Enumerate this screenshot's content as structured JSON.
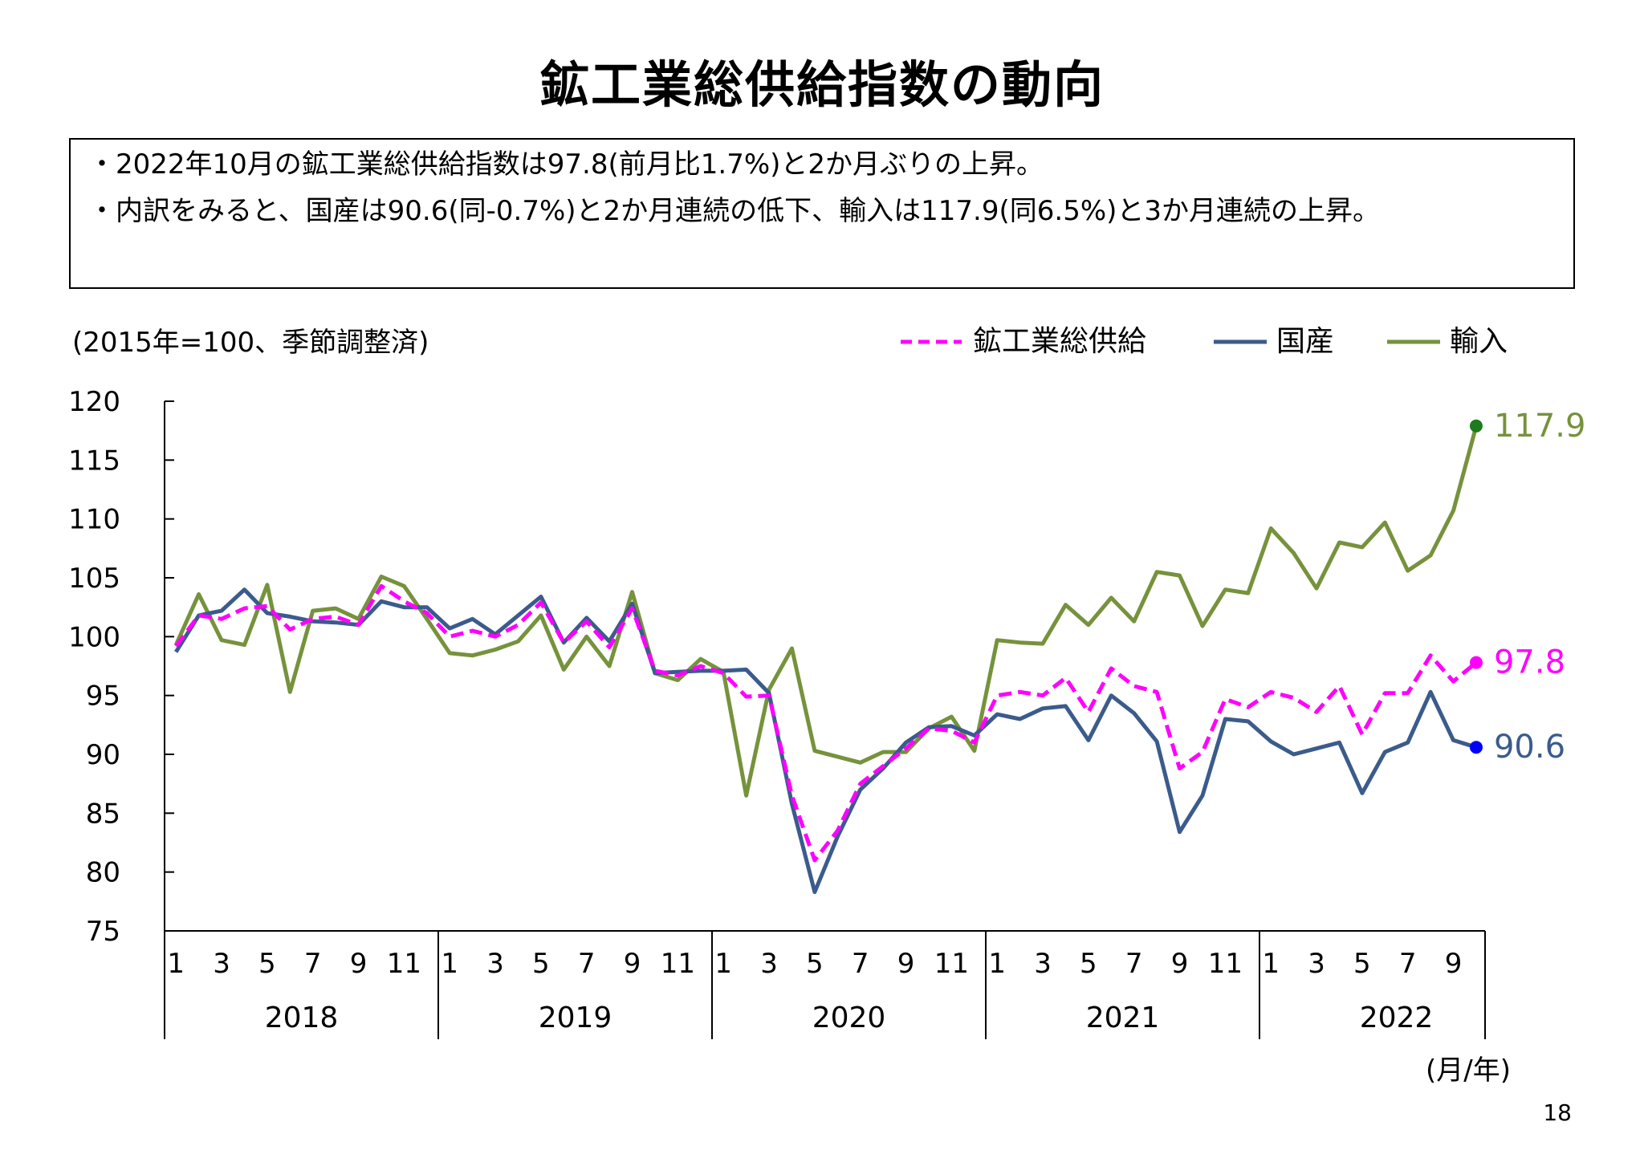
{
  "title": "鉱工業総供給指数の動向",
  "summary": {
    "bullet1": "・2022年10月の鉱工業総供給指数は97.8(前月比1.7%)と2か月ぶりの上昇。",
    "bullet2": "・内訳をみると、国産は90.6(同-0.7%)と2か月連続の低下、輸入は117.9(同6.5%)と3か月連続の上昇。"
  },
  "unit_note": "(2015年=100、季節調整済)",
  "axis_unit": "(月/年)",
  "page_number": "18",
  "colors": {
    "total": "#ff00ff",
    "domestic": "#3b5b8c",
    "import": "#76923c"
  },
  "chart_data": {
    "type": "line",
    "ylim": [
      75,
      120
    ],
    "yticks": [
      "75",
      "80",
      "85",
      "90",
      "95",
      "100",
      "105",
      "110",
      "115",
      "120"
    ],
    "month_labels": [
      "1",
      "3",
      "5",
      "7",
      "9",
      "11"
    ],
    "years": [
      "2018",
      "2019",
      "2020",
      "2021",
      "2022"
    ],
    "legend_position": "top-right",
    "grid": false,
    "series": [
      {
        "key": "total",
        "name": "鉱工業総供給",
        "style": "dashed",
        "end_label": "97.8",
        "values": [
          99.2,
          101.8,
          101.5,
          102.4,
          102.6,
          100.6,
          101.5,
          101.7,
          101.0,
          104.3,
          103.0,
          102.0,
          100.0,
          100.5,
          100.0,
          101.0,
          102.9,
          99.5,
          101.3,
          99.1,
          102.4,
          97.1,
          96.7,
          97.5,
          96.9,
          94.9,
          95.0,
          86.5,
          81.0,
          83.5,
          87.5,
          89.0,
          90.5,
          92.2,
          92.0,
          91.0,
          95.0,
          95.3,
          95.0,
          96.5,
          93.6,
          97.3,
          95.8,
          95.3,
          88.8,
          90.2,
          94.7,
          94.0,
          95.3,
          94.8,
          93.6,
          95.8,
          91.7,
          95.2,
          95.2,
          98.4,
          96.2,
          97.8
        ]
      },
      {
        "key": "domestic",
        "name": "国産",
        "style": "solid",
        "end_label": "90.6",
        "values": [
          98.7,
          101.8,
          102.2,
          104.0,
          102.0,
          101.7,
          101.3,
          101.2,
          101.0,
          103.0,
          102.5,
          102.5,
          100.7,
          101.5,
          100.2,
          101.8,
          103.4,
          99.5,
          101.6,
          99.6,
          102.8,
          96.9,
          97.0,
          97.1,
          97.1,
          97.2,
          95.2,
          85.8,
          78.3,
          83.0,
          87.0,
          88.8,
          91.0,
          92.3,
          92.4,
          91.6,
          93.4,
          93.0,
          93.9,
          94.1,
          91.2,
          95.0,
          93.5,
          91.1,
          83.4,
          86.5,
          93.0,
          92.8,
          91.1,
          90.0,
          90.5,
          91.0,
          86.7,
          90.2,
          91.0,
          95.3,
          91.2,
          90.6
        ]
      },
      {
        "key": "import",
        "name": "輸入",
        "style": "solid",
        "end_label": "117.9",
        "values": [
          99.3,
          103.6,
          99.7,
          99.3,
          104.4,
          95.3,
          102.2,
          102.4,
          101.5,
          105.1,
          104.3,
          101.5,
          98.6,
          98.4,
          98.9,
          99.6,
          101.8,
          97.2,
          100.0,
          97.5,
          103.8,
          96.9,
          96.3,
          98.1,
          97.0,
          86.5,
          95.5,
          99.0,
          90.3,
          89.8,
          89.3,
          90.2,
          90.2,
          92.2,
          93.2,
          90.3,
          99.7,
          99.5,
          99.4,
          102.7,
          101.0,
          103.3,
          101.3,
          105.5,
          105.2,
          100.9,
          104.0,
          103.7,
          109.2,
          107.1,
          104.1,
          108.0,
          107.6,
          109.7,
          105.6,
          106.9,
          110.7,
          117.9
        ]
      }
    ]
  }
}
